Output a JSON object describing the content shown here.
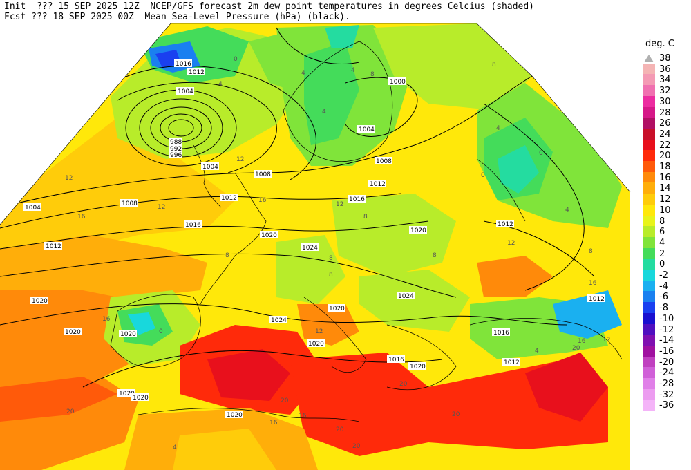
{
  "header": {
    "line1": "Init  ??? 15 SEP 2025 12Z  NCEP/GFS forecast 2m dew point temperatures in degrees Celcius (shaded)",
    "line2": "Fcst ??? 18 SEP 2025 00Z  Mean Sea-Level Pressure (hPa) (black)."
  },
  "legend": {
    "unit": "deg. C",
    "entries": [
      {
        "label": "38",
        "color": "#b0b0b0"
      },
      {
        "label": "36",
        "color": "#f4b4b4"
      },
      {
        "label": "34",
        "color": "#f49ab4"
      },
      {
        "label": "32",
        "color": "#f070b0"
      },
      {
        "label": "30",
        "color": "#ec2ca0"
      },
      {
        "label": "28",
        "color": "#d61888"
      },
      {
        "label": "26",
        "color": "#b01064"
      },
      {
        "label": "24",
        "color": "#c8102a"
      },
      {
        "label": "22",
        "color": "#e8101c"
      },
      {
        "label": "20",
        "color": "#ff2a0a"
      },
      {
        "label": "18",
        "color": "#ff5a0a"
      },
      {
        "label": "16",
        "color": "#ff8a0a"
      },
      {
        "label": "14",
        "color": "#ffae0a"
      },
      {
        "label": "12",
        "color": "#ffcc0a"
      },
      {
        "label": "10",
        "color": "#ffe80a"
      },
      {
        "label": "8",
        "color": "#e8f41a"
      },
      {
        "label": "6",
        "color": "#b8ec2a"
      },
      {
        "label": "4",
        "color": "#80e43a"
      },
      {
        "label": "2",
        "color": "#44dc5a"
      },
      {
        "label": "0",
        "color": "#24dca0"
      },
      {
        "label": "-2",
        "color": "#18d8dc"
      },
      {
        "label": "-4",
        "color": "#1ab0f0"
      },
      {
        "label": "-6",
        "color": "#1a80f0"
      },
      {
        "label": "-8",
        "color": "#1a40f0"
      },
      {
        "label": "-10",
        "color": "#1a10d0"
      },
      {
        "label": "-12",
        "color": "#5010c0"
      },
      {
        "label": "-14",
        "color": "#8010b0"
      },
      {
        "label": "-16",
        "color": "#a010a0"
      },
      {
        "label": "-20",
        "color": "#c040c0"
      },
      {
        "label": "-24",
        "color": "#d060d8"
      },
      {
        "label": "-28",
        "color": "#e080e8"
      },
      {
        "label": "-32",
        "color": "#ec9cf0"
      },
      {
        "label": "-36",
        "color": "#f4b4f8"
      }
    ]
  },
  "isobar_labels": [
    {
      "text": "1016",
      "type": "pressure"
    },
    {
      "text": "1012",
      "type": "pressure"
    },
    {
      "text": "1004",
      "type": "pressure"
    },
    {
      "text": "988",
      "type": "pressure"
    },
    {
      "text": "992",
      "type": "pressure"
    },
    {
      "text": "996",
      "type": "pressure"
    },
    {
      "text": "1000",
      "type": "pressure"
    },
    {
      "text": "1008",
      "type": "pressure"
    },
    {
      "text": "1020",
      "type": "pressure"
    },
    {
      "text": "1024",
      "type": "pressure"
    }
  ],
  "dewpoint_labels": [
    "0",
    "4",
    "8",
    "12",
    "16",
    "20"
  ]
}
